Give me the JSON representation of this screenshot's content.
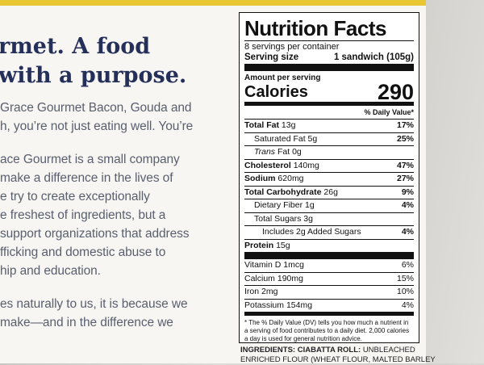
{
  "left_copy": {
    "heading": [
      "rmet. A food",
      "with a purpose."
    ],
    "paragraphs": [
      [
        "Grace Gourmet Bacon, Gouda and",
        "h, you’re not just eating well. You’re"
      ],
      [
        "ace Gourmet is a small company",
        "make a difference in the lives of",
        "e try to create exceptionally",
        "e freshest of ingredients, but a",
        "support organizations that address",
        "fficking and domestic abuse to",
        "hip and education."
      ],
      [
        "es naturally to us, it is because we",
        "make—and in the difference we"
      ]
    ]
  },
  "nutrition_facts": {
    "title": "Nutrition Facts",
    "servings": "8 servings per container",
    "serving_size_label": "Serving size",
    "serving_size": "1 sandwich (105g)",
    "amount_per_serving": "Amount per serving",
    "calories_label": "Calories",
    "calories": "290",
    "daily_value_header": "% Daily Value*",
    "nutrients": [
      {
        "label": "Total Fat",
        "amount": "13g",
        "dv": "17%"
      },
      {
        "label": "Saturated Fat",
        "amount": "5g",
        "dv": "25%"
      },
      {
        "label_italic": "Trans",
        "label": "Fat",
        "amount": "0g"
      },
      {
        "label": "Cholesterol",
        "amount": "140mg",
        "dv": "47%"
      },
      {
        "label": "Sodium",
        "amount": "620mg",
        "dv": "27%"
      },
      {
        "label": "Total Carbohydrate",
        "amount": "26g",
        "dv": "9%"
      },
      {
        "label": "Dietary Fiber",
        "amount": "1g",
        "dv": "4%"
      },
      {
        "label": "Total Sugars",
        "amount": "3g"
      },
      {
        "label": "Includes 2g Added Sugars",
        "dv": "4%"
      },
      {
        "label": "Protein",
        "amount": "15g"
      }
    ],
    "vitamins": [
      {
        "label": "Vitamin D",
        "amount": "1mcg",
        "dv": "6%"
      },
      {
        "label": "Calcium",
        "amount": "190mg",
        "dv": "15%"
      },
      {
        "label": "Iron",
        "amount": "2mg",
        "dv": "10%"
      },
      {
        "label": "Potassium",
        "amount": "154mg",
        "dv": "4%"
      }
    ],
    "footnote": "* The % Daily Value (DV) tells you how much a nutrient in a serving of food contributes to a daily diet. 2,000 calories a day is used for general nutrition advice."
  },
  "ingredients": {
    "label": "INGREDIENTS: CIABATTA ROLL:",
    "lines": [
      "UNBLEACHED",
      "ENRICHED FLOUR (WHEAT FLOUR, MALTED BARLEY"
    ]
  }
}
